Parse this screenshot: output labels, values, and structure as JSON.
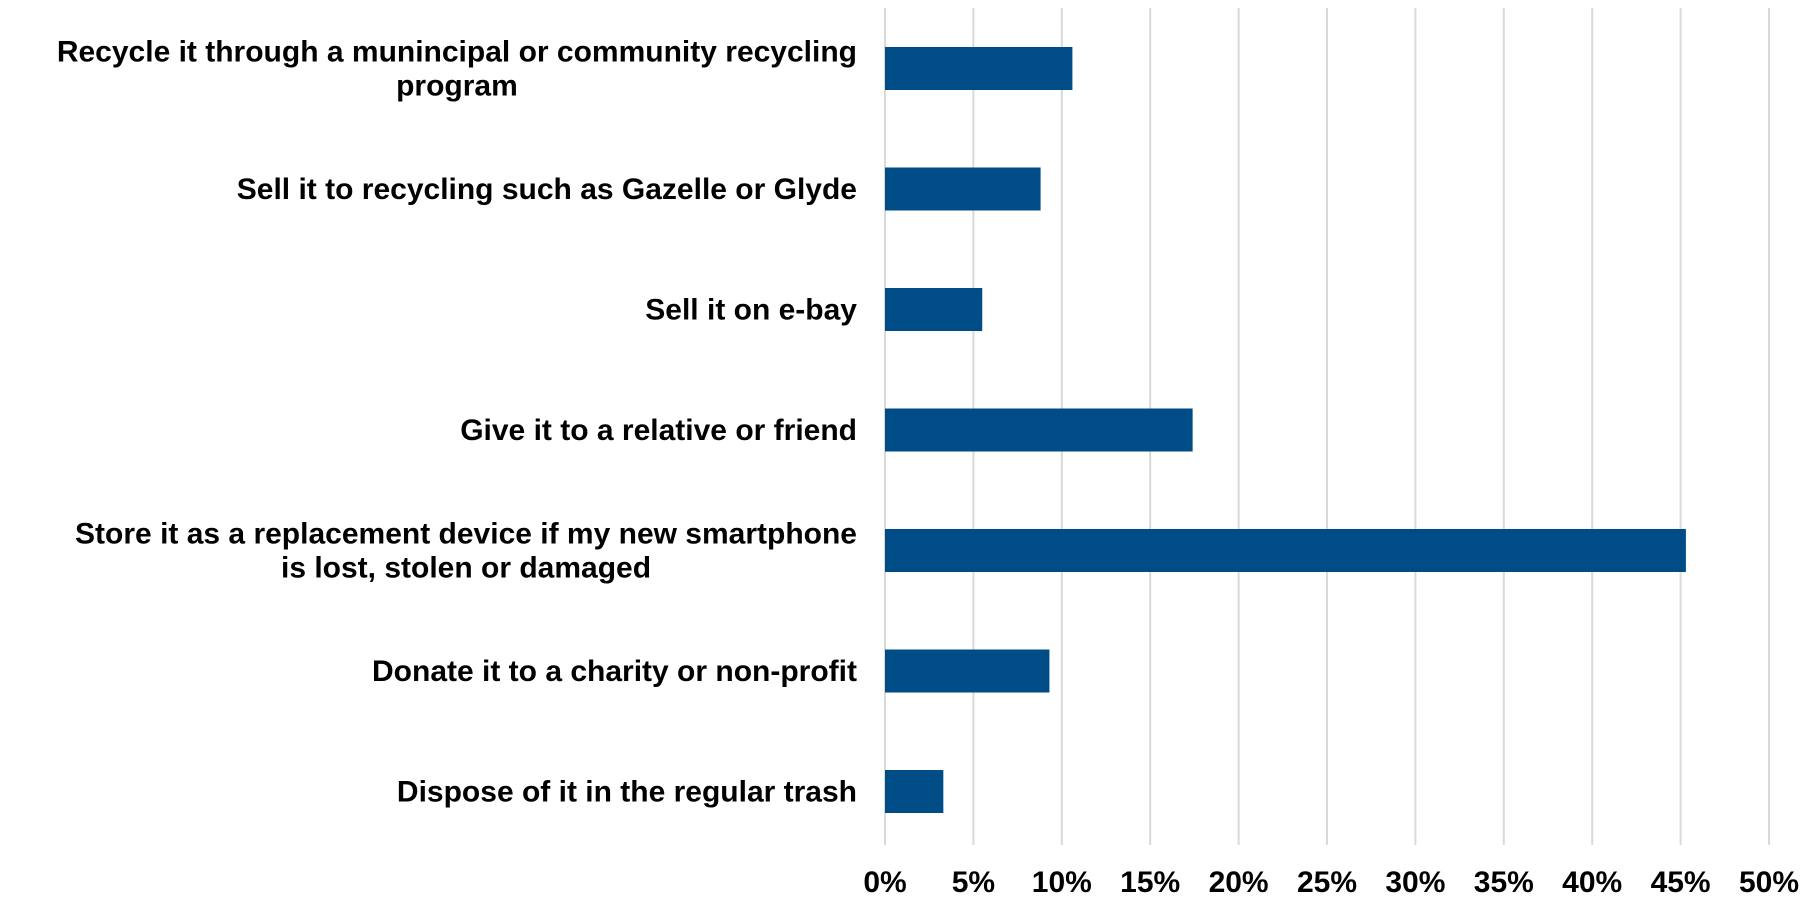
{
  "chart_data": {
    "type": "bar",
    "orientation": "horizontal",
    "categories": [
      [
        "Recycle it through a munincipal or community recycling",
        "program"
      ],
      [
        "Sell it to recycling such as Gazelle or Glyde"
      ],
      [
        "Sell it on e-bay"
      ],
      [
        "Give it to a relative or friend"
      ],
      [
        "Store it as a replacement device if my new smartphone",
        "is lost, stolen or damaged"
      ],
      [
        "Donate it to a charity or non-profit"
      ],
      [
        "Dispose of it in the regular trash"
      ]
    ],
    "values": [
      10.6,
      8.8,
      5.5,
      17.4,
      45.3,
      9.3,
      3.3
    ],
    "xlim": [
      0,
      50
    ],
    "ticks": [
      "0%",
      "5%",
      "10%",
      "15%",
      "20%",
      "25%",
      "30%",
      "35%",
      "40%",
      "45%",
      "50%"
    ],
    "tick_values": [
      0,
      5,
      10,
      15,
      20,
      25,
      30,
      35,
      40,
      45,
      50
    ],
    "grid": true,
    "bar_color": "#004c87",
    "title": "",
    "xlabel": "",
    "ylabel": ""
  }
}
